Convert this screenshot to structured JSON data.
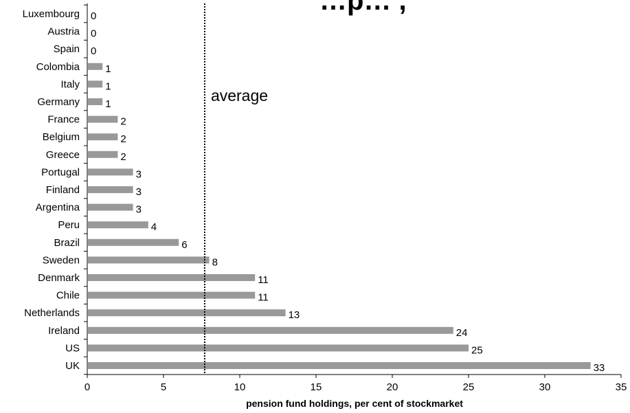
{
  "chart_data": {
    "type": "bar",
    "orientation": "horizontal",
    "title": "…p… ,",
    "categories": [
      "Luxembourg",
      "Austria",
      "Spain",
      "Colombia",
      "Italy",
      "Germany",
      "France",
      "Belgium",
      "Greece",
      "Portugal",
      "Finland",
      "Argentina",
      "Peru",
      "Brazil",
      "Sweden",
      "Denmark",
      "Chile",
      "Netherlands",
      "Ireland",
      "US",
      "UK"
    ],
    "values": [
      0,
      0,
      0,
      1,
      1,
      1,
      2,
      2,
      2,
      3,
      3,
      3,
      4,
      6,
      8,
      11,
      11,
      13,
      24,
      25,
      33
    ],
    "data_labels": [
      "0",
      "0",
      "0",
      "1",
      "1",
      "1",
      "2",
      "2",
      "2",
      "3",
      "3",
      "3",
      "4",
      "6",
      "8",
      "11",
      "11",
      "13",
      "24",
      "25",
      "33"
    ],
    "xlabel": "pension fund holdings, per cent of stockmarket",
    "ylabel": "",
    "xlim": [
      0,
      35
    ],
    "xticks": [
      0,
      5,
      10,
      15,
      20,
      25,
      30,
      35
    ],
    "xtick_labels": [
      "0",
      "5",
      "10",
      "15",
      "20",
      "25",
      "30",
      "35"
    ],
    "bar_color": "#999999",
    "grid": false,
    "legend": "none",
    "reference_line": {
      "label": "average",
      "value": 7.7,
      "style": "dotted"
    }
  }
}
